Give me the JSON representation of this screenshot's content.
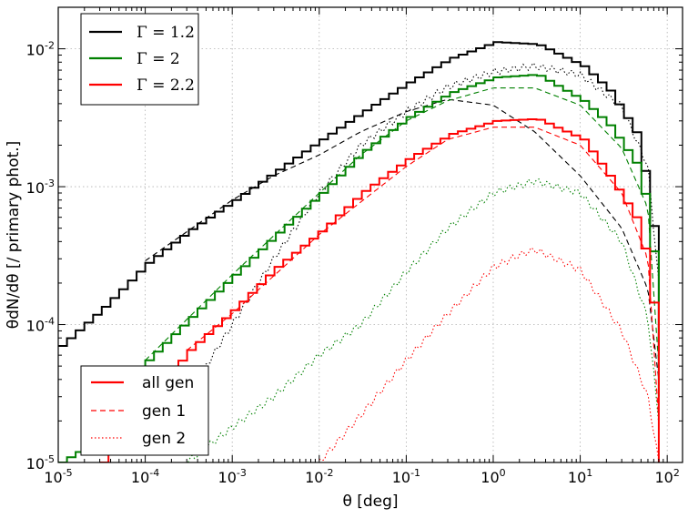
{
  "chart_data": {
    "type": "line",
    "xscale": "log",
    "yscale": "log",
    "xlim": [
      1e-05,
      150
    ],
    "ylim": [
      1e-05,
      0.02
    ],
    "xlabel": "θ [deg]",
    "ylabel": "θdN/dθ [/ primary phot.]",
    "x_ticks": [
      {
        "value": 1e-05,
        "base": "10",
        "exp": "-5"
      },
      {
        "value": 0.0001,
        "base": "10",
        "exp": "-4"
      },
      {
        "value": 0.001,
        "base": "10",
        "exp": "-3"
      },
      {
        "value": 0.01,
        "base": "10",
        "exp": "-2"
      },
      {
        "value": 0.1,
        "base": "10",
        "exp": "-1"
      },
      {
        "value": 1,
        "base": "10",
        "exp": "0"
      },
      {
        "value": 10,
        "base": "10",
        "exp": "1"
      },
      {
        "value": 100,
        "base": "10",
        "exp": "2"
      }
    ],
    "y_ticks": [
      {
        "value": 1e-05,
        "base": "10",
        "exp": "-5"
      },
      {
        "value": 0.0001,
        "base": "10",
        "exp": "-4"
      },
      {
        "value": 0.001,
        "base": "10",
        "exp": "-3"
      },
      {
        "value": 0.01,
        "base": "10",
        "exp": "-2"
      }
    ],
    "grid": true,
    "legend_gamma": {
      "placement": "top-left",
      "entries": [
        {
          "label": "Γ = 1.2",
          "color": "#000000"
        },
        {
          "label": "Γ = 2",
          "color": "#008000"
        },
        {
          "label": "Γ = 2.2",
          "color": "#ff0000"
        }
      ]
    },
    "legend_gen": {
      "placement": "bottom-left",
      "entries": [
        {
          "label": "all gen",
          "style": "solid",
          "color": "#ff0000"
        },
        {
          "label": "gen 1",
          "style": "dashed",
          "color": "#ff0000"
        },
        {
          "label": "gen 2",
          "style": "dotted",
          "color": "#ff0000"
        }
      ]
    },
    "series": [
      {
        "name": "Γ=1.2 all gen",
        "color": "#000000",
        "style": "solid",
        "step": true,
        "points": [
          [
            1e-05,
            7e-05
          ],
          [
            3e-05,
            0.00013
          ],
          [
            0.0001,
            0.00028
          ],
          [
            0.0003,
            0.00048
          ],
          [
            0.001,
            0.0008
          ],
          [
            0.003,
            0.0013
          ],
          [
            0.01,
            0.0022
          ],
          [
            0.03,
            0.0035
          ],
          [
            0.1,
            0.0057
          ],
          [
            0.3,
            0.0085
          ],
          [
            1,
            0.0112
          ],
          [
            3,
            0.0108
          ],
          [
            10,
            0.0075
          ],
          [
            20,
            0.005
          ],
          [
            40,
            0.0025
          ],
          [
            60,
            0.0008
          ],
          [
            70,
            0.00025
          ],
          [
            80,
            6e-05
          ]
        ]
      },
      {
        "name": "Γ=1.2 gen 1",
        "color": "#000000",
        "style": "dashed",
        "points": [
          [
            0.0001,
            0.00029
          ],
          [
            0.001,
            0.0008
          ],
          [
            0.003,
            0.0012
          ],
          [
            0.01,
            0.0017
          ],
          [
            0.03,
            0.0025
          ],
          [
            0.1,
            0.0035
          ],
          [
            0.3,
            0.0043
          ],
          [
            1,
            0.0039
          ],
          [
            3,
            0.0025
          ],
          [
            10,
            0.0012
          ],
          [
            30,
            0.0005
          ],
          [
            60,
            0.00018
          ],
          [
            80,
            4e-05
          ]
        ]
      },
      {
        "name": "Γ=1.2 gen 2",
        "color": "#000000",
        "style": "dotted",
        "points": [
          [
            0.0003,
            3e-05
          ],
          [
            0.001,
            0.0001
          ],
          [
            0.003,
            0.0003
          ],
          [
            0.01,
            0.0009
          ],
          [
            0.03,
            0.002
          ],
          [
            0.1,
            0.0035
          ],
          [
            0.3,
            0.0053
          ],
          [
            1,
            0.0068
          ],
          [
            3,
            0.0075
          ],
          [
            10,
            0.0065
          ],
          [
            30,
            0.0038
          ],
          [
            60,
            0.0014
          ],
          [
            80,
            0.0002
          ]
        ]
      },
      {
        "name": "Γ=2 all gen",
        "color": "#008000",
        "style": "solid",
        "step": true,
        "points": [
          [
            1e-05,
            1e-05
          ],
          [
            2e-05,
            1.3e-05
          ],
          [
            3e-05,
            2.2e-05
          ],
          [
            0.0001,
            5.5e-05
          ],
          [
            0.0003,
            0.00011
          ],
          [
            0.001,
            0.00023
          ],
          [
            0.003,
            0.00045
          ],
          [
            0.01,
            0.0009
          ],
          [
            0.03,
            0.0018
          ],
          [
            0.1,
            0.0032
          ],
          [
            0.3,
            0.0048
          ],
          [
            1,
            0.0062
          ],
          [
            3,
            0.0065
          ],
          [
            10,
            0.0042
          ],
          [
            20,
            0.0028
          ],
          [
            40,
            0.0015
          ],
          [
            60,
            0.0006
          ],
          [
            70,
            0.00013
          ],
          [
            80,
            3e-05
          ]
        ]
      },
      {
        "name": "Γ=2 gen 1",
        "color": "#008000",
        "style": "dashed",
        "points": [
          [
            0.0001,
            5.5e-05
          ],
          [
            0.001,
            0.00023
          ],
          [
            0.01,
            0.0009
          ],
          [
            0.03,
            0.0017
          ],
          [
            0.1,
            0.003
          ],
          [
            0.3,
            0.0042
          ],
          [
            1,
            0.0052
          ],
          [
            3,
            0.0052
          ],
          [
            10,
            0.0039
          ],
          [
            30,
            0.0019
          ],
          [
            60,
            0.0007
          ],
          [
            80,
            5e-05
          ]
        ]
      },
      {
        "name": "Γ=2 gen 2",
        "color": "#008000",
        "style": "dotted",
        "points": [
          [
            0.0003,
            1e-05
          ],
          [
            0.001,
            1.8e-05
          ],
          [
            0.003,
            3e-05
          ],
          [
            0.01,
            6e-05
          ],
          [
            0.03,
            0.0001
          ],
          [
            0.1,
            0.00024
          ],
          [
            0.3,
            0.0005
          ],
          [
            1,
            0.0009
          ],
          [
            3,
            0.0011
          ],
          [
            10,
            0.0009
          ],
          [
            30,
            0.0004
          ],
          [
            60,
            0.00011
          ],
          [
            80,
            2e-05
          ]
        ]
      },
      {
        "name": "Γ=2.2 all gen",
        "color": "#ff0000",
        "style": "solid",
        "step": true,
        "points": [
          [
            3e-05,
            1e-05
          ],
          [
            0.0001,
            2.8e-05
          ],
          [
            0.0003,
            6.5e-05
          ],
          [
            0.001,
            0.00013
          ],
          [
            0.003,
            0.00026
          ],
          [
            0.01,
            0.00048
          ],
          [
            0.03,
            0.00092
          ],
          [
            0.1,
            0.0016
          ],
          [
            0.3,
            0.0024
          ],
          [
            1,
            0.003
          ],
          [
            3,
            0.0031
          ],
          [
            10,
            0.0022
          ],
          [
            20,
            0.0012
          ],
          [
            40,
            0.0006
          ],
          [
            60,
            0.00024
          ],
          [
            70,
            6e-05
          ],
          [
            80,
            1e-05
          ]
        ]
      },
      {
        "name": "Γ=2.2 gen 1",
        "color": "#ff0000",
        "style": "dashed",
        "points": [
          [
            0.0003,
            6.5e-05
          ],
          [
            0.001,
            0.00012
          ],
          [
            0.01,
            0.00045
          ],
          [
            0.1,
            0.0014
          ],
          [
            0.3,
            0.0022
          ],
          [
            1,
            0.0027
          ],
          [
            3,
            0.0027
          ],
          [
            10,
            0.002
          ],
          [
            30,
            0.0009
          ],
          [
            60,
            0.0003
          ],
          [
            80,
            2e-05
          ]
        ]
      },
      {
        "name": "Γ=2.2 gen 2",
        "color": "#ff0000",
        "style": "dotted",
        "points": [
          [
            0.01,
            1e-05
          ],
          [
            0.03,
            2.2e-05
          ],
          [
            0.1,
            5.5e-05
          ],
          [
            0.3,
            0.00012
          ],
          [
            1,
            0.00026
          ],
          [
            2,
            0.00032
          ],
          [
            3,
            0.00035
          ],
          [
            10,
            0.00025
          ],
          [
            30,
            9e-05
          ],
          [
            60,
            3e-05
          ],
          [
            80,
            1e-05
          ]
        ]
      }
    ]
  }
}
